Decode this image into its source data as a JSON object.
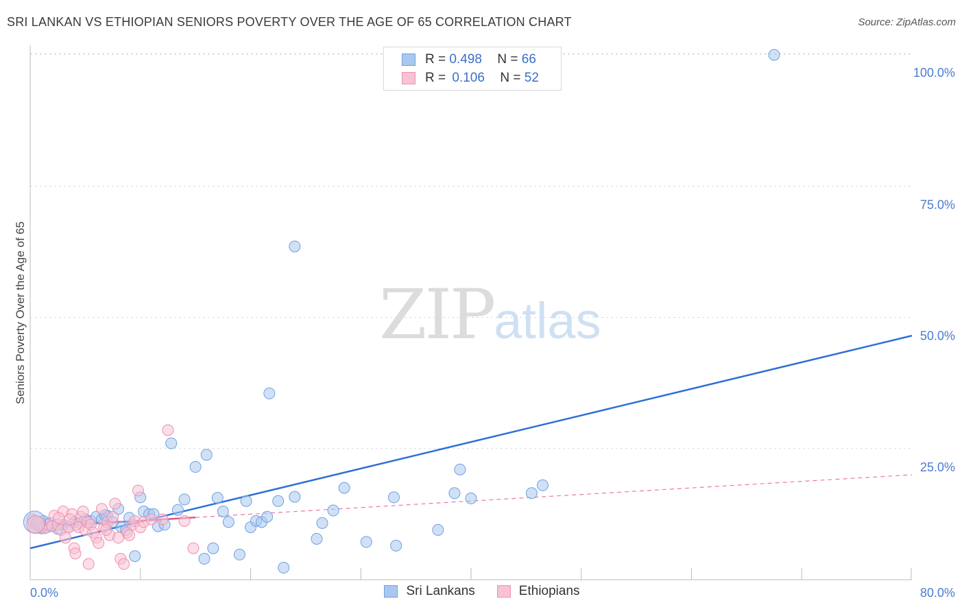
{
  "title": "SRI LANKAN VS ETHIOPIAN SENIORS POVERTY OVER THE AGE OF 65 CORRELATION CHART",
  "source": "Source: ZipAtlas.com",
  "watermark": {
    "zip": "ZIP",
    "atlas": "atlas"
  },
  "legend": {
    "rows": [
      {
        "r_label": "R =",
        "r_value": "0.498",
        "n_label": "N =",
        "n_value": "66",
        "color": "#a9c8f0",
        "border": "#6f9fde"
      },
      {
        "r_label": "R =",
        "r_value": "0.106",
        "n_label": "N =",
        "n_value": "52",
        "color": "#f7c2d4",
        "border": "#ee8fb0"
      }
    ]
  },
  "chart_data": {
    "type": "scatter",
    "title": "SRI LANKAN VS ETHIOPIAN SENIORS POVERTY OVER THE AGE OF 65 CORRELATION CHART",
    "xlabel": "",
    "ylabel": "Seniors Poverty Over the Age of 65",
    "xlim": [
      0,
      80
    ],
    "ylim": [
      0,
      105
    ],
    "x_tick_labels": [
      "0.0%",
      "80.0%"
    ],
    "y_ticks": [
      25,
      50,
      75,
      100
    ],
    "y_tick_labels": [
      "25.0%",
      "50.0%",
      "75.0%",
      "100.0%"
    ],
    "series": [
      {
        "name": "Sri Lankans",
        "color": "#6f9fde",
        "fill": "#a9c8f0",
        "trend": {
          "x": [
            0,
            80
          ],
          "y": [
            6.0,
            46.5
          ],
          "style": "solid"
        },
        "points": [
          [
            0.3,
            11.0
          ],
          [
            0.5,
            10.5
          ],
          [
            0.8,
            10.2
          ],
          [
            1.0,
            9.8
          ],
          [
            1.2,
            11.2
          ],
          [
            1.5,
            10.0
          ],
          [
            2.0,
            10.3
          ],
          [
            2.5,
            9.7
          ],
          [
            3.0,
            10.5
          ],
          [
            3.5,
            10.0
          ],
          [
            4.0,
            11.0
          ],
          [
            4.5,
            10.8
          ],
          [
            5.0,
            11.5
          ],
          [
            5.5,
            11.2
          ],
          [
            6.0,
            12.0
          ],
          [
            6.5,
            11.5
          ],
          [
            7.0,
            12.2
          ],
          [
            7.5,
            11.0
          ],
          [
            8.0,
            13.5
          ],
          [
            8.3,
            10.0
          ],
          [
            8.7,
            9.5
          ],
          [
            9.0,
            11.8
          ],
          [
            9.5,
            4.5
          ],
          [
            10.0,
            15.7
          ],
          [
            10.3,
            13.0
          ],
          [
            10.8,
            12.5
          ],
          [
            11.2,
            12.5
          ],
          [
            11.6,
            10.2
          ],
          [
            12.2,
            10.5
          ],
          [
            12.8,
            26.0
          ],
          [
            13.4,
            13.3
          ],
          [
            14.0,
            15.3
          ],
          [
            15.0,
            21.5
          ],
          [
            15.8,
            4.0
          ],
          [
            16.0,
            23.8
          ],
          [
            16.6,
            6.0
          ],
          [
            17.0,
            15.6
          ],
          [
            17.5,
            13.0
          ],
          [
            18.0,
            11.0
          ],
          [
            19.0,
            4.8
          ],
          [
            19.6,
            15.0
          ],
          [
            20.0,
            10.0
          ],
          [
            20.5,
            11.2
          ],
          [
            21.0,
            11.0
          ],
          [
            21.5,
            12.0
          ],
          [
            21.7,
            35.5
          ],
          [
            22.5,
            15.0
          ],
          [
            23.0,
            2.3
          ],
          [
            24.0,
            15.8
          ],
          [
            24.0,
            63.5
          ],
          [
            26.0,
            7.8
          ],
          [
            26.5,
            10.8
          ],
          [
            27.5,
            13.2
          ],
          [
            28.5,
            17.5
          ],
          [
            30.5,
            7.2
          ],
          [
            33.0,
            15.7
          ],
          [
            33.2,
            6.5
          ],
          [
            37.0,
            9.5
          ],
          [
            38.5,
            16.5
          ],
          [
            39.0,
            21.0
          ],
          [
            40.0,
            15.5
          ],
          [
            45.5,
            16.5
          ],
          [
            46.5,
            18.0
          ],
          [
            67.5,
            100.0
          ],
          [
            1.8,
            10.8
          ],
          [
            6.8,
            12.3
          ]
        ]
      },
      {
        "name": "Ethiopians",
        "color": "#ee8fb0",
        "fill": "#f7c2d4",
        "trend": {
          "x": [
            0,
            80
          ],
          "y": [
            10.0,
            20.0
          ],
          "style": "dashed",
          "solid_until": 15
        },
        "points": [
          [
            0.2,
            11.5
          ],
          [
            0.4,
            10.0
          ],
          [
            0.6,
            10.8
          ],
          [
            0.8,
            11.0
          ],
          [
            1.0,
            10.0
          ],
          [
            1.3,
            9.8
          ],
          [
            1.6,
            10.5
          ],
          [
            2.0,
            10.2
          ],
          [
            2.2,
            12.2
          ],
          [
            2.5,
            10.5
          ],
          [
            2.8,
            9.5
          ],
          [
            3.0,
            13.0
          ],
          [
            3.2,
            8.0
          ],
          [
            3.5,
            10.0
          ],
          [
            3.8,
            12.5
          ],
          [
            4.0,
            6.0
          ],
          [
            4.2,
            10.5
          ],
          [
            4.4,
            10.0
          ],
          [
            4.6,
            12.0
          ],
          [
            4.8,
            13.0
          ],
          [
            5.0,
            9.5
          ],
          [
            5.2,
            11.0
          ],
          [
            5.5,
            10.5
          ],
          [
            5.7,
            9.0
          ],
          [
            6.0,
            8.0
          ],
          [
            6.2,
            7.0
          ],
          [
            6.5,
            13.5
          ],
          [
            6.7,
            10.0
          ],
          [
            7.0,
            11.0
          ],
          [
            7.2,
            8.5
          ],
          [
            7.5,
            12.0
          ],
          [
            7.7,
            14.5
          ],
          [
            8.0,
            8.0
          ],
          [
            8.2,
            4.0
          ],
          [
            8.5,
            3.0
          ],
          [
            8.8,
            9.0
          ],
          [
            9.0,
            8.5
          ],
          [
            9.3,
            10.5
          ],
          [
            9.5,
            11.2
          ],
          [
            9.8,
            17.0
          ],
          [
            10.0,
            10.0
          ],
          [
            10.3,
            11.0
          ],
          [
            11.0,
            11.5
          ],
          [
            12.0,
            11.5
          ],
          [
            12.5,
            28.5
          ],
          [
            14.0,
            11.2
          ],
          [
            14.8,
            6.0
          ],
          [
            5.3,
            3.0
          ],
          [
            4.1,
            5.0
          ],
          [
            3.6,
            11.5
          ],
          [
            6.9,
            9.5
          ],
          [
            2.6,
            11.8
          ]
        ]
      }
    ]
  },
  "bottom_legend": [
    {
      "label": "Sri Lankans",
      "color": "#a9c8f0",
      "border": "#6f9fde"
    },
    {
      "label": "Ethiopians",
      "color": "#f7c2d4",
      "border": "#ee8fb0"
    }
  ]
}
